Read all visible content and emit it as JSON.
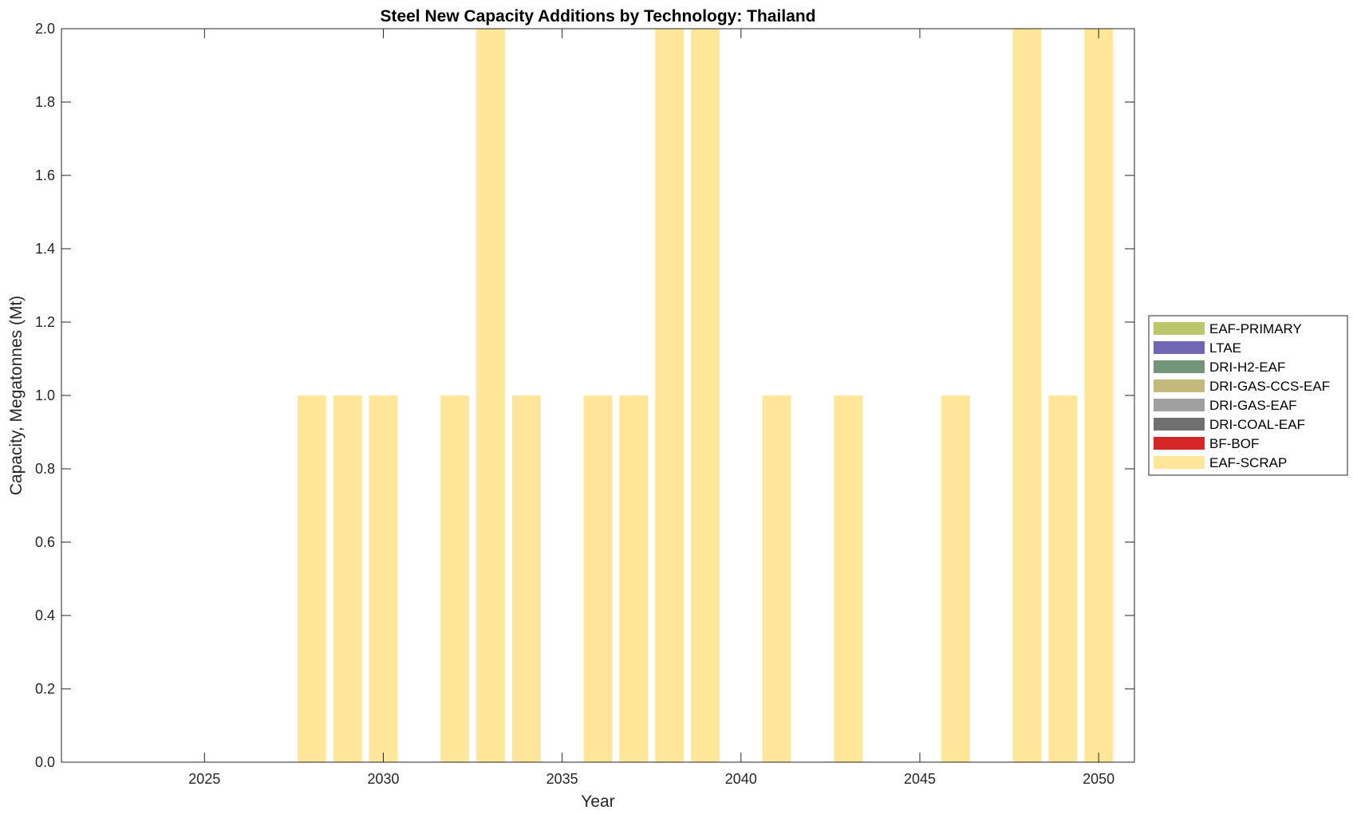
{
  "chart_data": {
    "type": "bar",
    "stacked": true,
    "title": "Steel New Capacity Additions by Technology: Thailand",
    "xlabel": "Year",
    "ylabel": "Capacity, Megatonnes (Mt)",
    "xlim": [
      2021,
      2051
    ],
    "ylim": [
      0,
      2
    ],
    "xticks": [
      2025,
      2030,
      2035,
      2040,
      2045,
      2050
    ],
    "yticks": [
      0.0,
      0.2,
      0.4,
      0.6,
      0.8,
      1.0,
      1.2,
      1.4,
      1.6,
      1.8,
      2.0
    ],
    "grid": false,
    "legend_position": "right",
    "categories": [
      2022,
      2023,
      2024,
      2025,
      2026,
      2027,
      2028,
      2029,
      2030,
      2031,
      2032,
      2033,
      2034,
      2035,
      2036,
      2037,
      2038,
      2039,
      2040,
      2041,
      2042,
      2043,
      2044,
      2045,
      2046,
      2047,
      2048,
      2049,
      2050
    ],
    "series": [
      {
        "name": "EAF-SCRAP",
        "color": "#FFE699",
        "values": [
          0,
          0,
          0,
          0,
          0,
          0,
          1,
          1,
          1,
          0,
          1,
          2,
          1,
          0,
          1,
          1,
          2,
          2,
          0,
          1,
          0,
          1,
          0,
          0,
          1,
          0,
          2,
          1,
          2
        ]
      },
      {
        "name": "BF-BOF",
        "color": "#D62728",
        "values": [
          0,
          0,
          0,
          0,
          0,
          0,
          0,
          0,
          0,
          0,
          0,
          0,
          0,
          0,
          0,
          0,
          0,
          0,
          0,
          0,
          0,
          0,
          0,
          0,
          0,
          0,
          0,
          0,
          0
        ]
      },
      {
        "name": "DRI-COAL-EAF",
        "color": "#707070",
        "values": [
          0,
          0,
          0,
          0,
          0,
          0,
          0,
          0,
          0,
          0,
          0,
          0,
          0,
          0,
          0,
          0,
          0,
          0,
          0,
          0,
          0,
          0,
          0,
          0,
          0,
          0,
          0,
          0,
          0
        ]
      },
      {
        "name": "DRI-GAS-EAF",
        "color": "#A0A0A0",
        "values": [
          0,
          0,
          0,
          0,
          0,
          0,
          0,
          0,
          0,
          0,
          0,
          0,
          0,
          0,
          0,
          0,
          0,
          0,
          0,
          0,
          0,
          0,
          0,
          0,
          0,
          0,
          0,
          0,
          0
        ]
      },
      {
        "name": "DRI-GAS-CCS-EAF",
        "color": "#C2BA7C",
        "values": [
          0,
          0,
          0,
          0,
          0,
          0,
          0,
          0,
          0,
          0,
          0,
          0,
          0,
          0,
          0,
          0,
          0,
          0,
          0,
          0,
          0,
          0,
          0,
          0,
          0,
          0,
          0,
          0,
          0
        ]
      },
      {
        "name": "DRI-H2-EAF",
        "color": "#73967A",
        "values": [
          0,
          0,
          0,
          0,
          0,
          0,
          0,
          0,
          0,
          0,
          0,
          0,
          0,
          0,
          0,
          0,
          0,
          0,
          0,
          0,
          0,
          0,
          0,
          0,
          0,
          0,
          0,
          0,
          0
        ]
      },
      {
        "name": "LTAE",
        "color": "#6F66B5",
        "values": [
          0,
          0,
          0,
          0,
          0,
          0,
          0,
          0,
          0,
          0,
          0,
          0,
          0,
          0,
          0,
          0,
          0,
          0,
          0,
          0,
          0,
          0,
          0,
          0,
          0,
          0,
          0,
          0,
          0
        ]
      },
      {
        "name": "EAF-PRIMARY",
        "color": "#BCC66B",
        "values": [
          0,
          0,
          0,
          0,
          0,
          0,
          0,
          0,
          0,
          0,
          0,
          0,
          0,
          0,
          0,
          0,
          0,
          0,
          0,
          0,
          0,
          0,
          0,
          0,
          0,
          0,
          0,
          0,
          0
        ]
      }
    ],
    "legend_order": [
      "EAF-PRIMARY",
      "LTAE",
      "DRI-H2-EAF",
      "DRI-GAS-CCS-EAF",
      "DRI-GAS-EAF",
      "DRI-COAL-EAF",
      "BF-BOF",
      "EAF-SCRAP"
    ]
  }
}
